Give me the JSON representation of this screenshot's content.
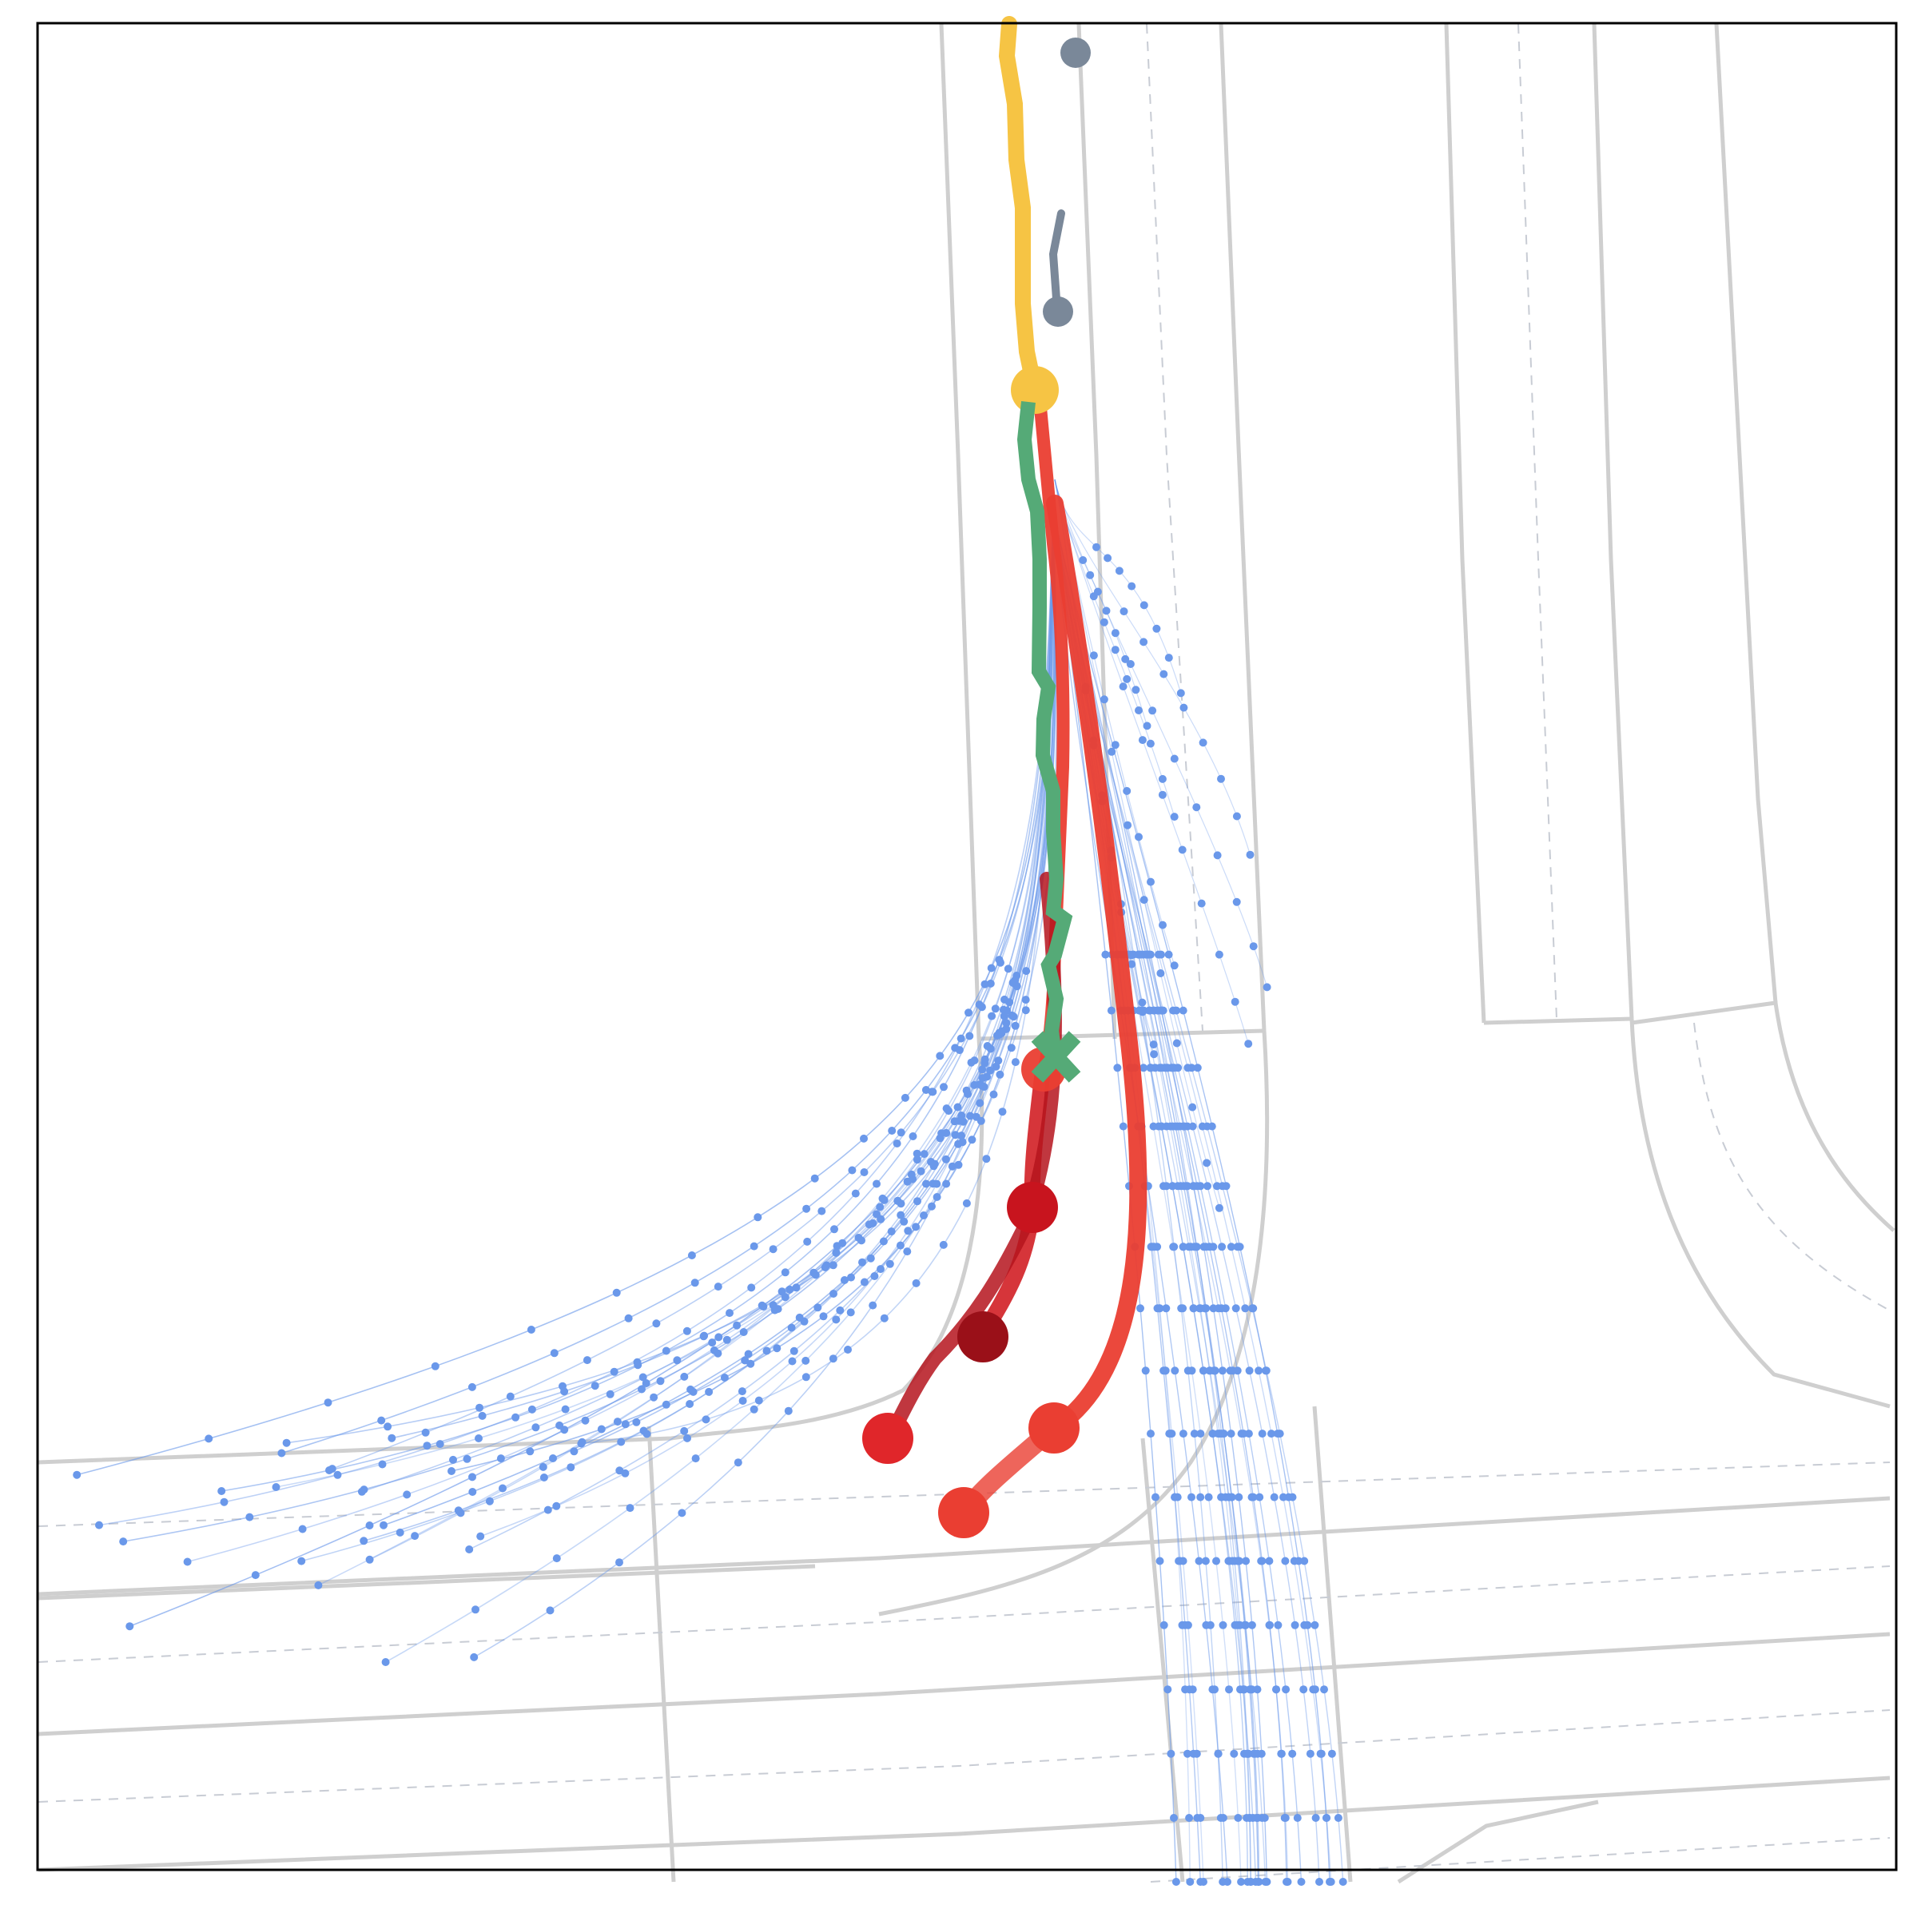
{
  "scene": {
    "type": "trajectory-prediction-map",
    "legend": null,
    "colors": {
      "background": "#ffffff",
      "frame": "#000000",
      "road_boundary": "#cfcfcf",
      "lane_divider": "#c8ccd4",
      "history": "#f6c444",
      "ground_truth": "#55aa77",
      "samples": "#6a98ea",
      "predictions_primary": "#ea3e32",
      "predictions_dark": "#9a1018",
      "other_agents": "#7a8899"
    },
    "icons": {
      "ego_current": "yellow-dot",
      "ground_truth_end": "green-cross",
      "prediction_end": "red-dot",
      "other_agent": "gray-dot"
    }
  }
}
